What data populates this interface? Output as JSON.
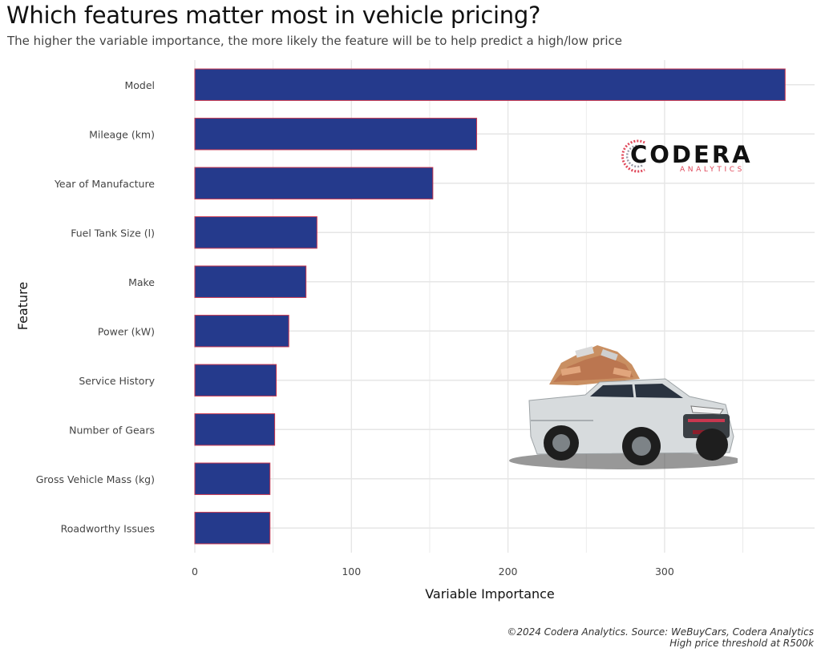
{
  "title": "Which features matter most in vehicle pricing?",
  "subtitle": "The higher the variable importance, the more likely the feature will be to help predict a high/low price",
  "caption": {
    "line1": "©2024 Codera Analytics. Source: WeBuyCars, Codera Analytics",
    "line2": "High price threshold at R500k"
  },
  "logo": {
    "word": "CODERA",
    "sub": "ANALYTICS"
  },
  "colors": {
    "bar_fill": "#253a8c",
    "bar_stroke": "#c8374f",
    "grid": "#e6e6e6",
    "logo_accent": "#e0485a"
  },
  "chart_data": {
    "type": "bar",
    "orientation": "horizontal",
    "xlabel": "Variable Importance",
    "ylabel": "Feature",
    "xlim": [
      0,
      395
    ],
    "xticks": [
      0,
      100,
      200,
      300
    ],
    "grid": true,
    "categories": [
      "Model",
      "Mileage (km)",
      "Year of Manufacture",
      "Fuel Tank Size (l)",
      "Make",
      "Power (kW)",
      "Service History",
      "Number of Gears",
      "Gross Vehicle Mass (kg)",
      "Roadworthy Issues"
    ],
    "values": [
      377,
      180,
      152,
      78,
      71,
      60,
      52,
      51,
      48,
      48
    ]
  }
}
